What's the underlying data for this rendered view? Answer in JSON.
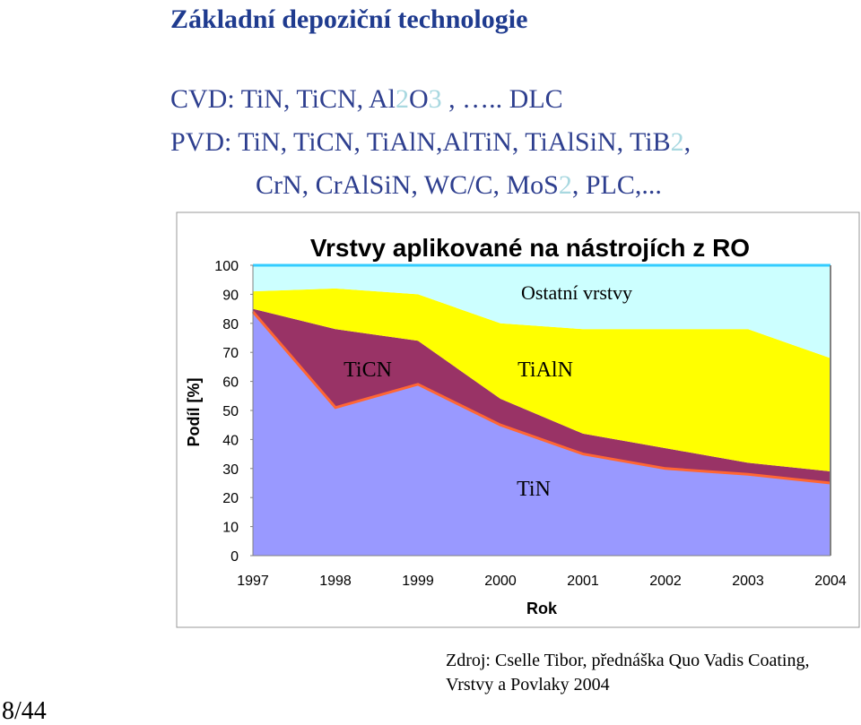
{
  "slide": {
    "title": "Základní depoziční technologie",
    "lines": [
      [
        "CVD: TiN, TiCN, Al",
        "2",
        "O",
        "3",
        " , ….. DLC"
      ],
      [
        "PVD: TiN, TiCN, TiAlN,AlTiN, TiAlSiN, TiB",
        "2",
        ","
      ],
      [
        "CrN, CrAlSiN, WC/C, MoS",
        "2",
        ", PLC,..."
      ]
    ],
    "source": [
      "Zdroj: Cselle Tibor, přednáška Quo Vadis Coating,",
      "Vrstvy a Povlaky 2004"
    ],
    "page": "8/44"
  },
  "chart_data": {
    "type": "stacked_area",
    "title": "Vrstvy aplikované na nástrojích z RO",
    "x_label": "Rok",
    "y_label": "Podíl [%]",
    "categories": [
      "1997",
      "1998",
      "1999",
      "2000",
      "2001",
      "2002",
      "2003",
      "2004"
    ],
    "ylim": [
      0,
      100
    ],
    "yticks": [
      0,
      10,
      20,
      30,
      40,
      50,
      60,
      70,
      80,
      90,
      100
    ],
    "series": [
      {
        "name": "TiN",
        "color": "#9999ff",
        "line_color": "#ff6633",
        "values": [
          84,
          51,
          59,
          45,
          35,
          30,
          28,
          25
        ]
      },
      {
        "name": "TiCN",
        "color": "#993366",
        "values": [
          1,
          27,
          15,
          9,
          7,
          7,
          4,
          4
        ]
      },
      {
        "name": "TiAlN",
        "color": "#ffff00",
        "values": [
          6,
          14,
          16,
          26,
          36,
          41,
          46,
          39
        ]
      },
      {
        "name": "Ostatní vrstvy",
        "color": "#ccffff",
        "line_color": "#33ccff",
        "values": [
          9,
          8,
          10,
          20,
          22,
          22,
          22,
          32
        ]
      }
    ]
  }
}
